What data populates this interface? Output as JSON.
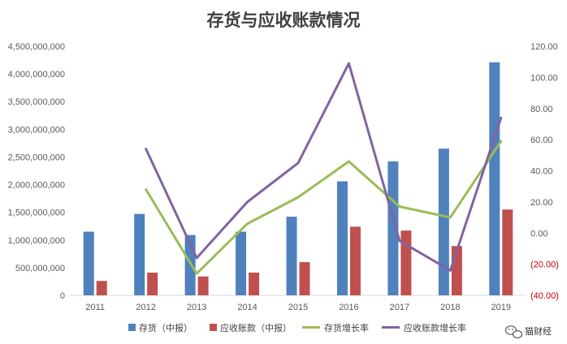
{
  "chart_data": {
    "type": "bar",
    "title": "存货与应收账款情况",
    "categories": [
      "2011",
      "2012",
      "2013",
      "2014",
      "2015",
      "2016",
      "2017",
      "2018",
      "2019"
    ],
    "series": [
      {
        "name": "存货（中报）",
        "kind": "bar",
        "axis": "left",
        "color": "#4f81bd",
        "values": [
          1150000000,
          1470000000,
          1090000000,
          1150000000,
          1420000000,
          2060000000,
          2420000000,
          2650000000,
          4210000000
        ]
      },
      {
        "name": "应收账款（中报）",
        "kind": "bar",
        "axis": "left",
        "color": "#c0504d",
        "values": [
          260000000,
          410000000,
          340000000,
          410000000,
          600000000,
          1240000000,
          1170000000,
          890000000,
          1550000000
        ]
      },
      {
        "name": "存货增长率",
        "kind": "line",
        "axis": "right",
        "color": "#9bbb59",
        "values": [
          null,
          28,
          -26,
          6,
          23,
          46,
          17,
          10,
          59
        ]
      },
      {
        "name": "应收账款增长率",
        "kind": "line",
        "axis": "right",
        "color": "#8064a2",
        "values": [
          null,
          54,
          -16,
          20,
          45,
          109,
          -5,
          -24,
          74
        ]
      }
    ],
    "ylim": [
      0,
      4500000000
    ],
    "y2lim": [
      -40,
      120
    ],
    "yticks": [
      0,
      500000000,
      1000000000,
      1500000000,
      2000000000,
      2500000000,
      3000000000,
      3500000000,
      4000000000,
      4500000000
    ],
    "yticklabels": [
      "0",
      "500,000,000",
      "1,000,000,000",
      "1,500,000,000",
      "2,000,000,000",
      "2,500,000,000",
      "3,000,000,000",
      "3,500,000,000",
      "4,000,000,000",
      "4,500,000,000"
    ],
    "y2ticks": [
      -40,
      -20,
      0,
      20,
      40,
      60,
      80,
      100,
      120
    ],
    "y2ticklabels": [
      "(40.00)",
      "(20.00)",
      "0.00",
      "20.00",
      "40.00",
      "60.00",
      "80.00",
      "100.00",
      "120.00"
    ],
    "grid": false,
    "legend": "bottom"
  },
  "watermark": {
    "text": "猫财经",
    "icon": "wechat-icon"
  }
}
